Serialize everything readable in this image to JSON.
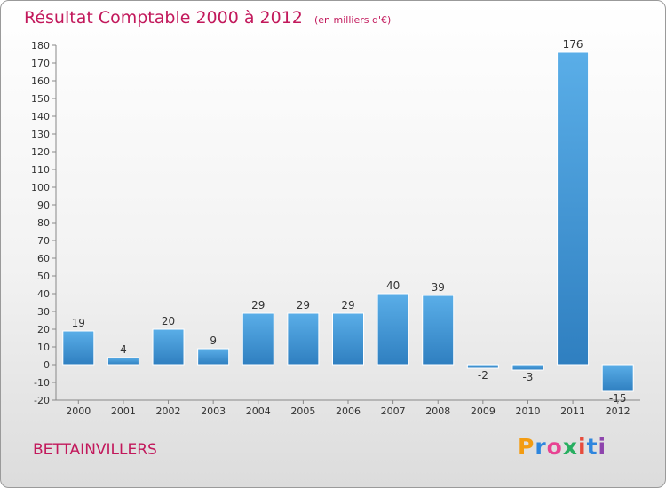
{
  "header": {
    "title": "Résultat Comptable 2000 à 2012",
    "unit": "(en milliers d'€)"
  },
  "footer": {
    "place": "BETTAINVILLERS",
    "logo": [
      "P",
      "r",
      "o",
      "x",
      "i",
      "t",
      "i"
    ],
    "logo_colors": [
      "#f39c12",
      "#2e86de",
      "#e84393",
      "#27ae60",
      "#e74c3c",
      "#2e86de",
      "#8e44ad"
    ]
  },
  "chart_data": {
    "type": "bar",
    "categories": [
      "2000",
      "2001",
      "2002",
      "2003",
      "2004",
      "2005",
      "2006",
      "2007",
      "2008",
      "2009",
      "2010",
      "2011",
      "2012"
    ],
    "values": [
      19,
      4,
      20,
      9,
      29,
      29,
      29,
      40,
      39,
      -2,
      -3,
      176,
      -15
    ],
    "title": "Résultat Comptable 2000 à 2012",
    "ylim": [
      -20,
      180
    ],
    "yticks": [
      -20,
      -10,
      0,
      10,
      20,
      30,
      40,
      50,
      60,
      70,
      80,
      90,
      100,
      110,
      120,
      130,
      140,
      150,
      160,
      170,
      180
    ],
    "grid": false,
    "colors": {
      "bar_light": "#5aaee8",
      "bar_dark": "#2f7fc0",
      "label": "#333333",
      "axis": "#888888"
    }
  }
}
